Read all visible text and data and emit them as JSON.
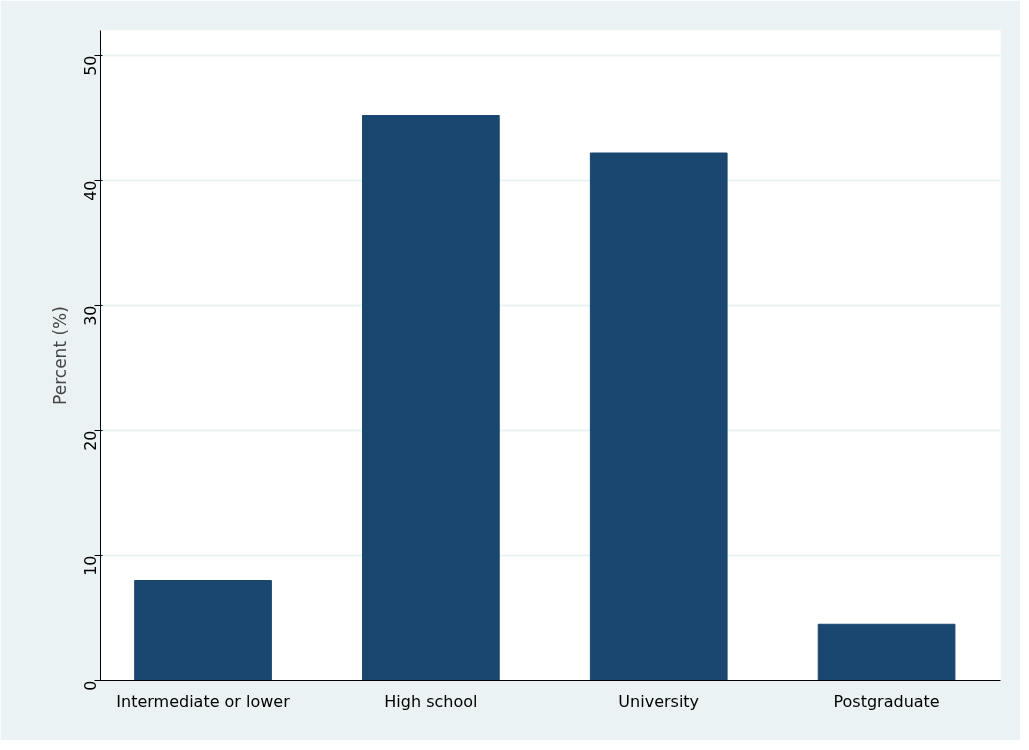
{
  "chart_data": {
    "type": "bar",
    "ylabel": "Percent (%)",
    "categories": [
      "Intermediate or lower",
      "High school",
      "University",
      "Postgraduate"
    ],
    "values": [
      8.0,
      45.2,
      42.2,
      4.5
    ],
    "color": "#1a476f",
    "ylim": [
      0,
      52
    ],
    "yticks": [
      0,
      10,
      20,
      30,
      40,
      50
    ],
    "grid": "y"
  }
}
